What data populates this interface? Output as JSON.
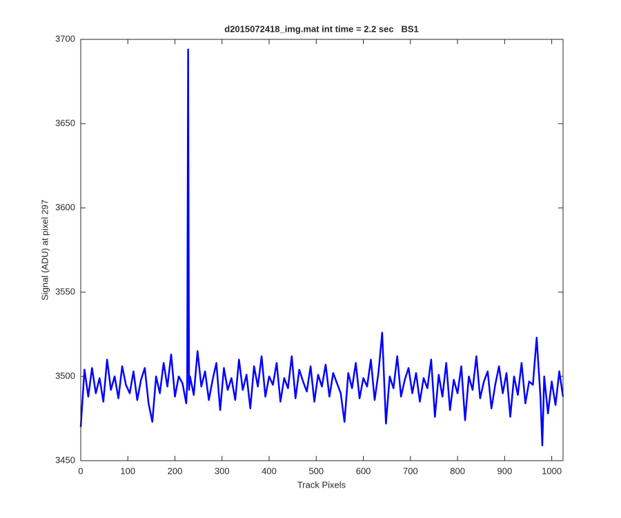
{
  "chart_data": {
    "type": "line",
    "title": "d2015072418_img.mat int time = 2.2 sec   BS1",
    "xlabel": "Track Pixels",
    "ylabel": "Signal (ADU) at pixel 297",
    "x": [
      0,
      8,
      16,
      24,
      32,
      40,
      48,
      56,
      64,
      72,
      80,
      88,
      96,
      104,
      112,
      120,
      128,
      136,
      144,
      152,
      160,
      168,
      176,
      184,
      192,
      200,
      208,
      216,
      224,
      226,
      228,
      230,
      232,
      240,
      248,
      256,
      264,
      272,
      280,
      288,
      296,
      304,
      312,
      320,
      328,
      336,
      344,
      352,
      360,
      368,
      376,
      384,
      392,
      400,
      408,
      416,
      424,
      432,
      440,
      448,
      456,
      464,
      472,
      480,
      488,
      496,
      504,
      512,
      520,
      528,
      536,
      544,
      552,
      560,
      568,
      576,
      584,
      592,
      600,
      608,
      616,
      624,
      632,
      640,
      648,
      656,
      664,
      672,
      680,
      688,
      696,
      704,
      712,
      720,
      728,
      736,
      744,
      752,
      760,
      768,
      776,
      784,
      792,
      800,
      808,
      816,
      824,
      832,
      840,
      848,
      856,
      864,
      872,
      880,
      888,
      896,
      904,
      912,
      920,
      928,
      936,
      944,
      952,
      960,
      968,
      976,
      980,
      984,
      992,
      1000,
      1008,
      1016,
      1024
    ],
    "series": [
      {
        "name": "Signal",
        "color": "#0000ff",
        "values": [
          3470,
          3504,
          3488,
          3505,
          3490,
          3499,
          3485,
          3510,
          3492,
          3500,
          3487,
          3506,
          3495,
          3490,
          3503,
          3486,
          3498,
          3505,
          3484,
          3473,
          3500,
          3490,
          3508,
          3494,
          3513,
          3488,
          3500,
          3496,
          3484,
          3496,
          3694,
          3492,
          3500,
          3489,
          3515,
          3494,
          3503,
          3486,
          3498,
          3508,
          3480,
          3505,
          3492,
          3499,
          3486,
          3510,
          3492,
          3501,
          3481,
          3506,
          3494,
          3512,
          3488,
          3500,
          3495,
          3508,
          3485,
          3499,
          3493,
          3512,
          3487,
          3504,
          3497,
          3491,
          3506,
          3485,
          3501,
          3494,
          3507,
          3488,
          3502,
          3496,
          3490,
          3473,
          3502,
          3493,
          3508,
          3487,
          3499,
          3494,
          3510,
          3486,
          3502,
          3526,
          3472,
          3500,
          3493,
          3512,
          3488,
          3498,
          3505,
          3490,
          3502,
          3485,
          3499,
          3493,
          3510,
          3476,
          3501,
          3488,
          3508,
          3480,
          3498,
          3490,
          3506,
          3474,
          3500,
          3492,
          3512,
          3487,
          3497,
          3503,
          3481,
          3495,
          3506,
          3490,
          3502,
          3476,
          3500,
          3489,
          3508,
          3484,
          3497,
          3495,
          3523,
          3488,
          3459,
          3500,
          3478,
          3497,
          3483,
          3503,
          3488
        ]
      }
    ],
    "xlim": [
      0,
      1024
    ],
    "ylim": [
      3450,
      3700
    ],
    "xticks": [
      0,
      100,
      200,
      300,
      400,
      500,
      600,
      700,
      800,
      900,
      1000
    ],
    "yticks": [
      3450,
      3500,
      3550,
      3600,
      3650,
      3700
    ],
    "grid": false
  }
}
